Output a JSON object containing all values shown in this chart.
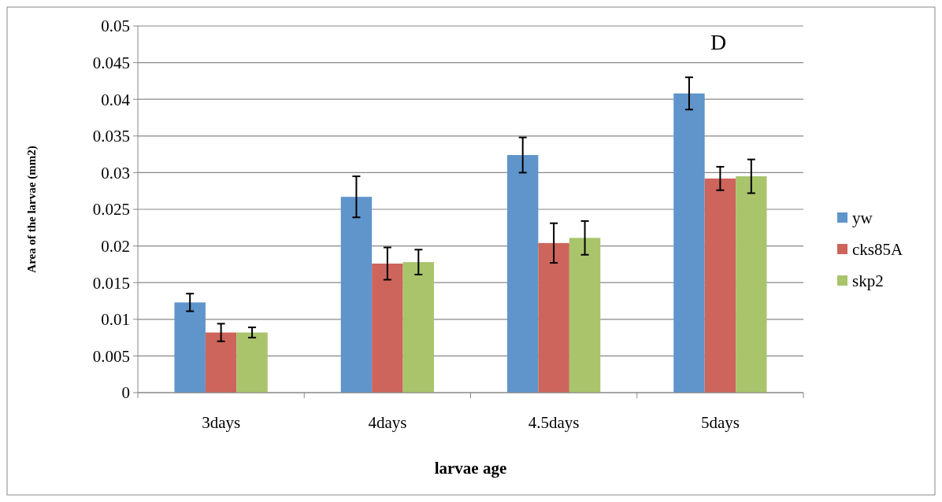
{
  "chart_data": {
    "type": "bar",
    "xlabel": "larvae age",
    "ylabel": "Area of the larvae (mm2)",
    "annotations": [
      "D"
    ],
    "categories": [
      "3days",
      "4days",
      "4.5days",
      "5days"
    ],
    "series": [
      {
        "name": "yw",
        "color": "#5f95cb",
        "values": [
          0.0123,
          0.0267,
          0.0324,
          0.0408
        ],
        "errors": [
          0.0012,
          0.0028,
          0.0024,
          0.0022
        ]
      },
      {
        "name": "cks85A",
        "color": "#cd655c",
        "values": [
          0.0082,
          0.0176,
          0.0204,
          0.0292
        ],
        "errors": [
          0.0012,
          0.0022,
          0.0027,
          0.0016
        ]
      },
      {
        "name": "skp2",
        "color": "#a9c46b",
        "values": [
          0.0082,
          0.0178,
          0.0211,
          0.0295
        ],
        "errors": [
          0.0007,
          0.0017,
          0.0023,
          0.0023
        ]
      }
    ],
    "ylim": [
      0,
      0.05
    ],
    "yticks": [
      0,
      0.005,
      0.01,
      0.015,
      0.02,
      0.025,
      0.03,
      0.035,
      0.04,
      0.045,
      0.05
    ],
    "grid": "y",
    "legend": "right"
  }
}
